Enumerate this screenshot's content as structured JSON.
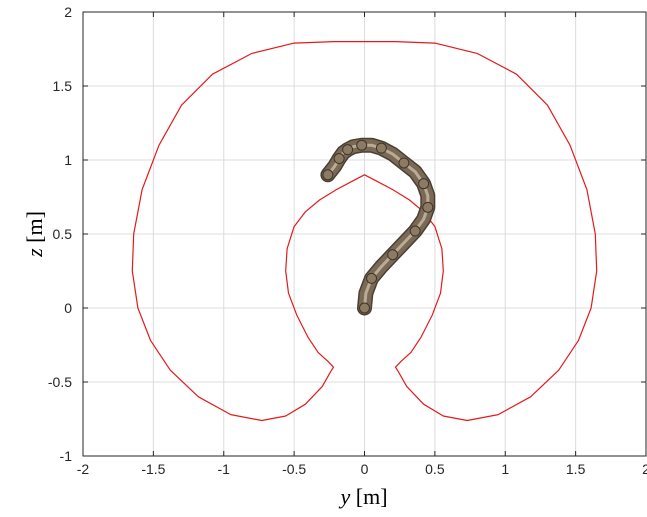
{
  "chart_data": {
    "type": "line",
    "title": "",
    "xlabel": {
      "var": "y",
      "unit": " [m]"
    },
    "ylabel": {
      "var": "z",
      "unit": " [m]"
    },
    "xlim": [
      -2,
      2
    ],
    "ylim": [
      -1,
      2
    ],
    "xticks": [
      "-2",
      "-1.5",
      "-1",
      "-0.5",
      "0",
      "0.5",
      "1",
      "1.5",
      "2"
    ],
    "yticks": [
      "-1",
      "-0.5",
      "0",
      "0.5",
      "1",
      "1.5",
      "2"
    ],
    "grid": true,
    "series": [
      {
        "color": "#e31a1c",
        "x": [
          -0.24,
          -0.22,
          -0.26,
          -0.33,
          -0.4,
          -0.48,
          -0.54,
          -0.56,
          -0.55,
          -0.5,
          -0.42,
          -0.32,
          -0.2,
          -0.08,
          0.0,
          0.08,
          0.2,
          0.32,
          0.42,
          0.5,
          0.55,
          0.56,
          0.54,
          0.48,
          0.4,
          0.33,
          0.26,
          0.22,
          0.24,
          0.3,
          0.42,
          0.56,
          0.73,
          0.95,
          1.18,
          1.38,
          1.52,
          1.61,
          1.65,
          1.64,
          1.58,
          1.46,
          1.3,
          1.08,
          0.8,
          0.5,
          0.22,
          0.0,
          -0.22,
          -0.5,
          -0.8,
          -1.08,
          -1.3,
          -1.46,
          -1.58,
          -1.64,
          -1.65,
          -1.61,
          -1.52,
          -1.38,
          -1.18,
          -0.95,
          -0.73,
          -0.56,
          -0.42,
          -0.3,
          -0.24
        ],
        "y": [
          -0.43,
          -0.4,
          -0.36,
          -0.3,
          -0.2,
          -0.05,
          0.1,
          0.25,
          0.4,
          0.55,
          0.65,
          0.73,
          0.8,
          0.86,
          0.9,
          0.86,
          0.8,
          0.73,
          0.65,
          0.55,
          0.4,
          0.25,
          0.1,
          -0.05,
          -0.2,
          -0.3,
          -0.36,
          -0.4,
          -0.43,
          -0.53,
          -0.65,
          -0.73,
          -0.76,
          -0.72,
          -0.6,
          -0.42,
          -0.22,
          0.0,
          0.25,
          0.5,
          0.8,
          1.1,
          1.37,
          1.58,
          1.72,
          1.79,
          1.8,
          1.8,
          1.8,
          1.79,
          1.72,
          1.58,
          1.37,
          1.1,
          0.8,
          0.5,
          0.25,
          0.0,
          -0.22,
          -0.42,
          -0.6,
          -0.72,
          -0.76,
          -0.73,
          -0.65,
          -0.53,
          -0.43
        ]
      }
    ],
    "robot_arm": {
      "color": "#7a6a55",
      "y": [
        0.0,
        0.01,
        0.05,
        0.12,
        0.2,
        0.28,
        0.36,
        0.42,
        0.45,
        0.45,
        0.42,
        0.36,
        0.28,
        0.2,
        0.12,
        0.05,
        -0.02,
        -0.08,
        -0.12,
        -0.15,
        -0.18,
        -0.21,
        -0.26
      ],
      "z": [
        0.0,
        0.1,
        0.2,
        0.28,
        0.36,
        0.44,
        0.52,
        0.6,
        0.68,
        0.76,
        0.84,
        0.92,
        0.98,
        1.04,
        1.08,
        1.1,
        1.1,
        1.09,
        1.07,
        1.05,
        1.01,
        0.96,
        0.9
      ]
    }
  }
}
